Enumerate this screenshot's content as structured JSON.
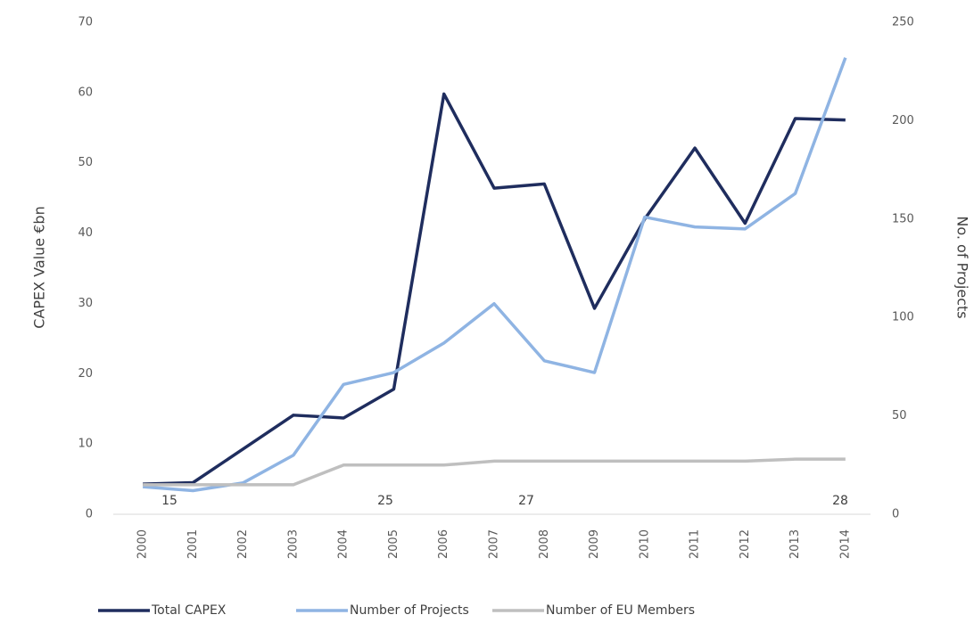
{
  "chart_data": {
    "type": "line",
    "ylabel": "CAPEX Value €bn",
    "y2label": "No. of Projects",
    "categories": [
      "2000",
      "2001",
      "2002",
      "2003",
      "2004",
      "2005",
      "2006",
      "2007",
      "2008",
      "2009",
      "2010",
      "2011",
      "2012",
      "2013",
      "2014"
    ],
    "series": [
      {
        "name": "Total CAPEX",
        "color": "#1f2d5e",
        "values": [
          4.3,
          4.5,
          9.3,
          14.1,
          13.7,
          17.8,
          59.8,
          46.4,
          47.0,
          29.3,
          42.0,
          52.1,
          41.4,
          56.3,
          56.1
        ]
      },
      {
        "name": "Number of Projects",
        "color": "#8fb4e3",
        "axis": "y2",
        "values": [
          14,
          12,
          16,
          30,
          66,
          72,
          87,
          107,
          78,
          72,
          151,
          146,
          145,
          163,
          232
        ]
      },
      {
        "name": "Number of EU Members",
        "color": "#bfbfbf",
        "axis": "y2",
        "values": [
          15,
          15,
          15,
          15,
          25,
          25,
          25,
          27,
          27,
          27,
          27,
          27,
          27,
          28,
          28
        ]
      }
    ],
    "annotations": [
      "15",
      "25",
      "27",
      "28"
    ],
    "ylim": [
      0,
      70
    ],
    "yticks": [
      0,
      10,
      20,
      30,
      40,
      50,
      60,
      70
    ],
    "y2lim": [
      0,
      250
    ],
    "y2ticks": [
      0,
      50,
      100,
      150,
      200,
      250
    ],
    "legend": "bottom"
  }
}
